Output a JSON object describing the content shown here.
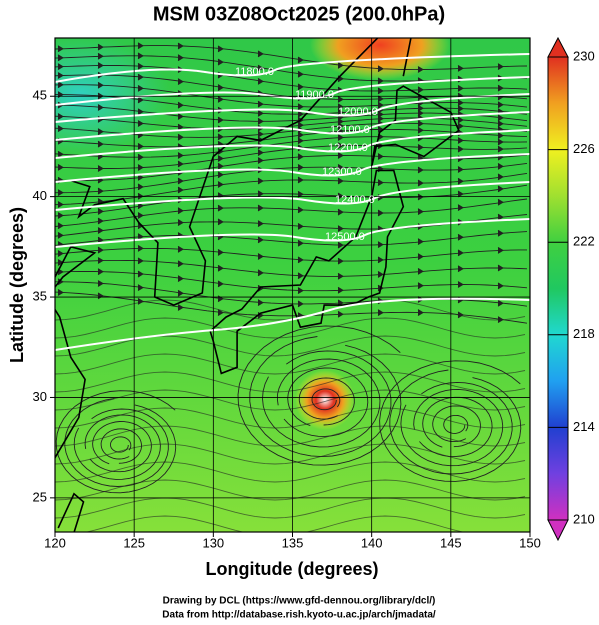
{
  "title": "MSM 03Z08Oct2025 (200.0hPa)",
  "x_axis": {
    "label": "Longitude (degrees)",
    "lim": [
      120,
      150
    ],
    "ticks": [
      120,
      125,
      130,
      135,
      140,
      145,
      150
    ]
  },
  "y_axis": {
    "label": "Latitude  (degrees)",
    "lim": [
      23.3,
      47.9
    ],
    "ticks": [
      25,
      30,
      35,
      40,
      45
    ]
  },
  "colorbar": {
    "lim": [
      210,
      230
    ],
    "ticks": [
      210,
      214,
      218,
      222,
      226,
      230
    ]
  },
  "contour_labels": [
    "11800.0",
    "11900.0",
    "12000.0",
    "12100.0",
    "12200.0",
    "12300.0",
    "12400.0",
    "12500.0"
  ],
  "credits": [
    "Drawing by DCL (https://www.gfd-dennou.org/library/dcl/)",
    "Data from http://database.rish.kyoto-u.ac.jp/arch/jmadata/"
  ]
}
